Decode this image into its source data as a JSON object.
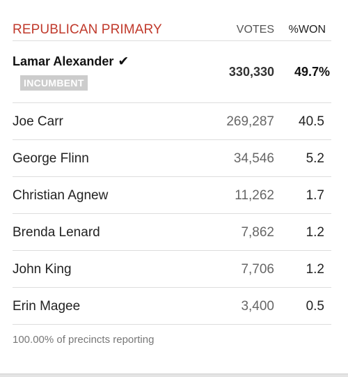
{
  "header": {
    "title": "REPUBLICAN PRIMARY",
    "votes_label": "VOTES",
    "won_label": "%WON"
  },
  "colors": {
    "title": "#c0392b",
    "badge_bg": "#cccccc",
    "divider": "#dddddd"
  },
  "icons": {
    "winner_mark": "check-icon"
  },
  "winner": {
    "name": "Lamar Alexander",
    "check": "✔",
    "badge": "INCUMBENT",
    "votes": "330,330",
    "pct": "49.7%"
  },
  "candidates": [
    {
      "name": "Joe Carr",
      "votes": "269,287",
      "pct": "40.5"
    },
    {
      "name": "George Flinn",
      "votes": "34,546",
      "pct": "5.2"
    },
    {
      "name": "Christian Agnew",
      "votes": "11,262",
      "pct": "1.7"
    },
    {
      "name": "Brenda Lenard",
      "votes": "7,862",
      "pct": "1.2"
    },
    {
      "name": "John King",
      "votes": "7,706",
      "pct": "1.2"
    },
    {
      "name": "Erin Magee",
      "votes": "3,400",
      "pct": "0.5"
    }
  ],
  "footer": {
    "reporting": "100.00% of precincts reporting"
  }
}
